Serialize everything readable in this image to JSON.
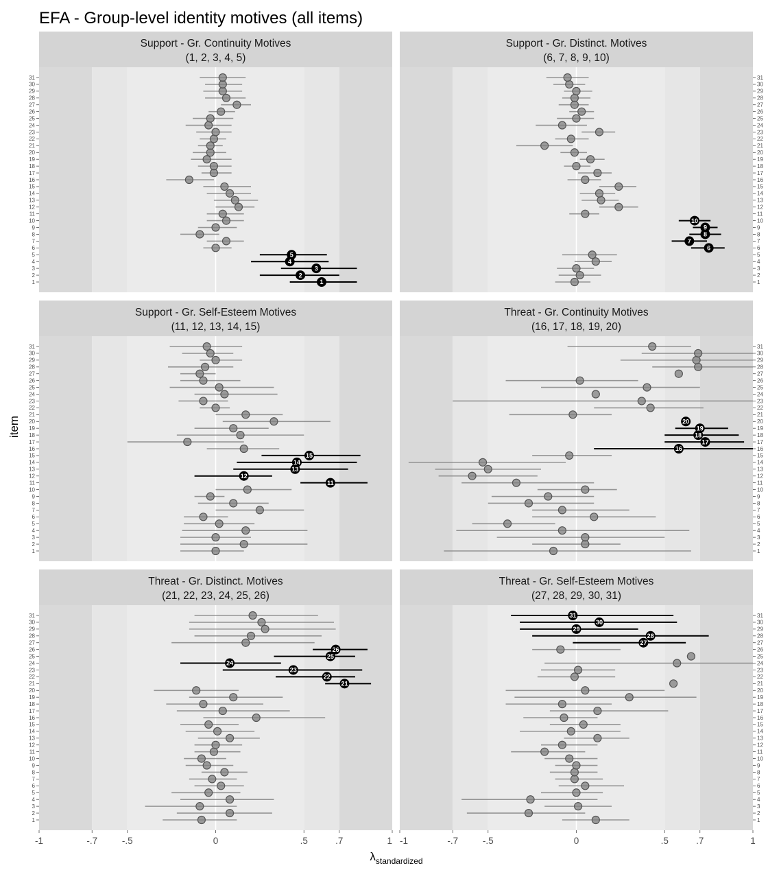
{
  "title": "EFA - Group-level identity motives (all items)",
  "ylabel": "item",
  "xlabel_main": "λ",
  "xlabel_sub": "standardized",
  "x_ticks": [
    {
      "value": -1,
      "label": "-1"
    },
    {
      "value": -0.7,
      "label": "-.7"
    },
    {
      "value": -0.5,
      "label": "-.5"
    },
    {
      "value": 0,
      "label": "0"
    },
    {
      "value": 0.5,
      "label": ".5"
    },
    {
      "value": 0.7,
      "label": ".7"
    },
    {
      "value": 1,
      "label": "1"
    }
  ],
  "colors": {
    "band_outer": "#d9d9d9",
    "band_mid": "#e6e6e6",
    "band_inner": "#ebebeb",
    "strip": "#d4d4d4",
    "highlight": "#000000",
    "other": "#808080"
  },
  "chart_data": {
    "type": "scatter",
    "subtype": "forest plot (point estimates with interval bars), faceted 3 x 2",
    "x_range": [
      -1,
      1
    ],
    "shaded_bands": [
      [
        -1,
        -0.7
      ],
      [
        -0.7,
        -0.5
      ],
      [
        -0.5,
        0.5
      ],
      [
        0.5,
        0.7
      ],
      [
        0.7,
        1
      ]
    ],
    "y_categories": [
      "1",
      "2",
      "3",
      "4",
      "5",
      "6",
      "7",
      "8",
      "9",
      "10",
      "11",
      "12",
      "13",
      "14",
      "15",
      "16",
      "17",
      "18",
      "19",
      "20",
      "21",
      "22",
      "23",
      "24",
      "25",
      "26",
      "27",
      "28",
      "29",
      "30",
      "31"
    ],
    "panels": [
      {
        "strip_line1": "Support - Gr. Continuity Motives",
        "strip_line2": "(1, 2, 3, 4, 5)",
        "highlighted_items": [
          1,
          2,
          3,
          4,
          5
        ],
        "estimates": [
          0.6,
          0.48,
          0.57,
          0.42,
          0.43,
          0.0,
          0.06,
          -0.09,
          0.0,
          0.06,
          0.04,
          0.13,
          0.11,
          0.08,
          0.05,
          -0.15,
          -0.01,
          -0.01,
          -0.05,
          -0.03,
          -0.03,
          -0.01,
          0.0,
          -0.04,
          -0.03,
          0.03,
          0.12,
          0.06,
          0.04,
          0.04,
          0.04
        ],
        "lower": [
          0.42,
          0.25,
          0.37,
          0.2,
          0.25,
          -0.07,
          -0.05,
          -0.2,
          -0.1,
          -0.05,
          -0.05,
          0.0,
          -0.01,
          -0.05,
          -0.07,
          -0.28,
          -0.08,
          -0.1,
          -0.14,
          -0.13,
          -0.1,
          -0.09,
          -0.11,
          -0.17,
          -0.13,
          -0.04,
          0.03,
          -0.06,
          -0.07,
          -0.06,
          -0.09
        ],
        "upper": [
          0.8,
          0.7,
          0.8,
          0.64,
          0.63,
          0.09,
          0.16,
          0.02,
          0.12,
          0.16,
          0.16,
          0.22,
          0.24,
          0.2,
          0.2,
          -0.01,
          0.09,
          0.09,
          0.09,
          0.06,
          0.04,
          0.06,
          0.09,
          0.09,
          0.1,
          0.11,
          0.2,
          0.17,
          0.15,
          0.15,
          0.17
        ]
      },
      {
        "strip_line1": "Support - Gr. Distinct. Motives",
        "strip_line2": "(6, 7, 8, 9, 10)",
        "highlighted_items": [
          6,
          7,
          8,
          9,
          10
        ],
        "estimates": [
          -0.01,
          0.02,
          0.0,
          0.11,
          0.09,
          0.75,
          0.64,
          0.73,
          0.73,
          0.67,
          0.05,
          0.24,
          0.14,
          0.13,
          0.24,
          0.05,
          0.12,
          0.0,
          0.08,
          -0.01,
          -0.18,
          -0.03,
          0.13,
          -0.08,
          0.0,
          0.03,
          -0.01,
          -0.01,
          0.0,
          -0.04,
          -0.05
        ],
        "lower": [
          -0.12,
          -0.1,
          -0.11,
          -0.01,
          -0.08,
          0.65,
          0.54,
          0.64,
          0.66,
          0.58,
          -0.04,
          0.13,
          0.03,
          0.02,
          0.13,
          -0.05,
          0.01,
          -0.07,
          0.02,
          -0.09,
          -0.34,
          -0.12,
          0.03,
          -0.23,
          -0.11,
          -0.04,
          -0.1,
          -0.08,
          -0.07,
          -0.13,
          -0.17
        ],
        "upper": [
          0.08,
          0.14,
          0.1,
          0.2,
          0.23,
          0.84,
          0.74,
          0.82,
          0.8,
          0.76,
          0.13,
          0.35,
          0.24,
          0.22,
          0.34,
          0.14,
          0.2,
          0.08,
          0.16,
          0.06,
          -0.02,
          0.07,
          0.22,
          0.06,
          0.1,
          0.1,
          0.07,
          0.08,
          0.09,
          0.05,
          0.07
        ]
      },
      {
        "strip_line1": "Support - Gr. Self-Esteem Motives",
        "strip_line2": "(11, 12, 13, 14, 15)",
        "highlighted_items": [
          11,
          12,
          13,
          14,
          15
        ],
        "estimates": [
          0.0,
          0.16,
          0.0,
          0.17,
          0.02,
          -0.07,
          0.25,
          0.1,
          -0.03,
          0.18,
          0.65,
          0.16,
          0.45,
          0.46,
          0.53,
          0.16,
          -0.16,
          0.14,
          0.1,
          0.33,
          0.17,
          0.0,
          -0.07,
          0.05,
          0.02,
          -0.07,
          -0.09,
          -0.06,
          0.0,
          -0.03,
          -0.05
        ],
        "lower": [
          -0.2,
          -0.2,
          -0.2,
          -0.19,
          -0.18,
          -0.18,
          0.0,
          -0.1,
          -0.12,
          0.0,
          0.48,
          -0.12,
          0.1,
          0.12,
          0.26,
          -0.05,
          -0.5,
          -0.22,
          -0.12,
          0.04,
          0.0,
          -0.09,
          -0.21,
          -0.12,
          -0.26,
          -0.2,
          -0.2,
          -0.27,
          -0.09,
          -0.19,
          -0.26
        ],
        "upper": [
          0.16,
          0.52,
          0.2,
          0.52,
          0.22,
          0.07,
          0.5,
          0.3,
          0.05,
          0.43,
          0.86,
          0.32,
          0.75,
          0.8,
          0.82,
          0.36,
          0.16,
          0.5,
          0.3,
          0.65,
          0.38,
          0.08,
          0.07,
          0.35,
          0.33,
          0.14,
          0.0,
          0.1,
          0.15,
          0.1,
          0.15
        ]
      },
      {
        "strip_line1": "Threat - Gr. Continuity Motives",
        "strip_line2": "(16, 17, 18, 19, 20)",
        "highlighted_items": [
          16,
          17,
          18,
          19,
          20
        ],
        "estimates": [
          -0.13,
          0.05,
          0.05,
          -0.08,
          -0.39,
          0.1,
          -0.08,
          -0.27,
          -0.16,
          0.05,
          -0.34,
          -0.59,
          -0.5,
          -0.53,
          -0.04,
          0.58,
          0.73,
          0.69,
          0.7,
          0.62,
          -0.02,
          0.42,
          0.37,
          0.11,
          0.4,
          0.02,
          0.58,
          0.69,
          0.68,
          0.69,
          0.43
        ],
        "lower": [
          -0.75,
          -0.25,
          -0.45,
          -0.68,
          -0.59,
          -0.25,
          -0.25,
          -0.5,
          -0.48,
          -0.22,
          -0.65,
          -0.78,
          -0.8,
          -0.95,
          -0.25,
          0.1,
          0.5,
          0.5,
          0.56,
          0.62,
          -0.38,
          0.1,
          -0.7,
          0.1,
          -0.2,
          -0.4,
          0.58,
          0.43,
          0.25,
          0.37,
          -0.05
        ],
        "upper": [
          0.65,
          0.25,
          0.5,
          0.64,
          -0.12,
          0.45,
          0.3,
          0.1,
          0.1,
          0.23,
          0.1,
          -0.22,
          -0.2,
          -0.06,
          0.2,
          1.0,
          0.95,
          0.92,
          0.86,
          0.62,
          0.2,
          0.72,
          1.0,
          0.1,
          0.7,
          0.35,
          0.58,
          1.0,
          1.0,
          1.0,
          0.65
        ]
      },
      {
        "strip_line1": "Threat - Gr. Distinct. Motives",
        "strip_line2": "(21, 22, 23, 24, 25, 26)",
        "highlighted_items": [
          21,
          22,
          23,
          24,
          25,
          26
        ],
        "estimates": [
          -0.08,
          0.08,
          -0.09,
          0.08,
          -0.04,
          0.03,
          -0.02,
          0.05,
          -0.05,
          -0.08,
          -0.01,
          0.0,
          0.08,
          0.01,
          -0.04,
          0.23,
          0.04,
          -0.07,
          0.1,
          -0.11,
          0.73,
          0.63,
          0.44,
          0.08,
          0.65,
          0.68,
          0.17,
          0.2,
          0.28,
          0.26,
          0.21
        ],
        "lower": [
          -0.3,
          -0.22,
          -0.4,
          -0.2,
          -0.25,
          -0.12,
          -0.15,
          -0.08,
          -0.17,
          -0.18,
          -0.12,
          -0.12,
          -0.1,
          -0.17,
          -0.2,
          -0.07,
          -0.22,
          -0.28,
          -0.15,
          -0.35,
          0.62,
          0.34,
          0.04,
          -0.2,
          0.33,
          0.55,
          -0.25,
          -0.12,
          -0.15,
          -0.15,
          -0.12
        ],
        "upper": [
          0.12,
          0.32,
          0.12,
          0.33,
          0.14,
          0.16,
          0.12,
          0.18,
          0.1,
          0.06,
          0.14,
          0.15,
          0.25,
          0.22,
          0.13,
          0.62,
          0.42,
          0.27,
          0.38,
          0.13,
          0.88,
          0.79,
          0.83,
          0.37,
          0.79,
          0.86,
          0.56,
          0.6,
          0.68,
          0.67,
          0.58
        ]
      },
      {
        "strip_line1": "Threat - Gr. Self-Esteem Motives",
        "strip_line2": "(27, 28, 29, 30, 31)",
        "highlighted_items": [
          27,
          28,
          29,
          30,
          31
        ],
        "estimates": [
          0.11,
          -0.27,
          0.01,
          -0.26,
          0.0,
          0.05,
          -0.01,
          -0.01,
          0.0,
          -0.04,
          -0.18,
          -0.08,
          0.12,
          -0.03,
          0.04,
          -0.07,
          0.12,
          -0.08,
          0.3,
          0.05,
          0.55,
          -0.01,
          0.01,
          0.57,
          0.65,
          -0.09,
          0.38,
          0.42,
          0.0,
          0.13,
          -0.02
        ],
        "lower": [
          -0.08,
          -0.62,
          -0.18,
          -0.65,
          -0.2,
          -0.1,
          -0.12,
          -0.15,
          -0.12,
          -0.18,
          -0.37,
          -0.2,
          -0.07,
          -0.32,
          -0.15,
          -0.3,
          -0.15,
          -0.4,
          -0.35,
          -0.4,
          0.55,
          -0.22,
          -0.2,
          -0.18,
          0.65,
          -0.25,
          -0.02,
          -0.25,
          -0.32,
          -0.32,
          -0.37
        ],
        "upper": [
          0.3,
          0.05,
          0.2,
          0.12,
          0.15,
          0.27,
          0.15,
          0.12,
          0.12,
          0.12,
          0.05,
          0.12,
          0.3,
          0.25,
          0.25,
          0.12,
          0.52,
          0.2,
          0.68,
          0.5,
          0.55,
          0.22,
          0.22,
          1.35,
          0.65,
          0.25,
          0.62,
          0.75,
          0.35,
          0.57,
          0.55
        ]
      }
    ]
  }
}
